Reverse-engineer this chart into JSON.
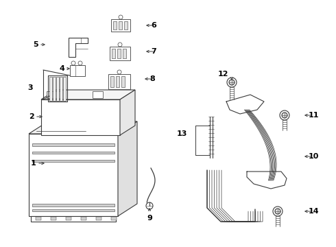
{
  "bg_color": "#ffffff",
  "line_color": "#3a3a3a",
  "text_color": "#000000",
  "fig_width": 4.9,
  "fig_height": 3.6,
  "dpi": 100
}
